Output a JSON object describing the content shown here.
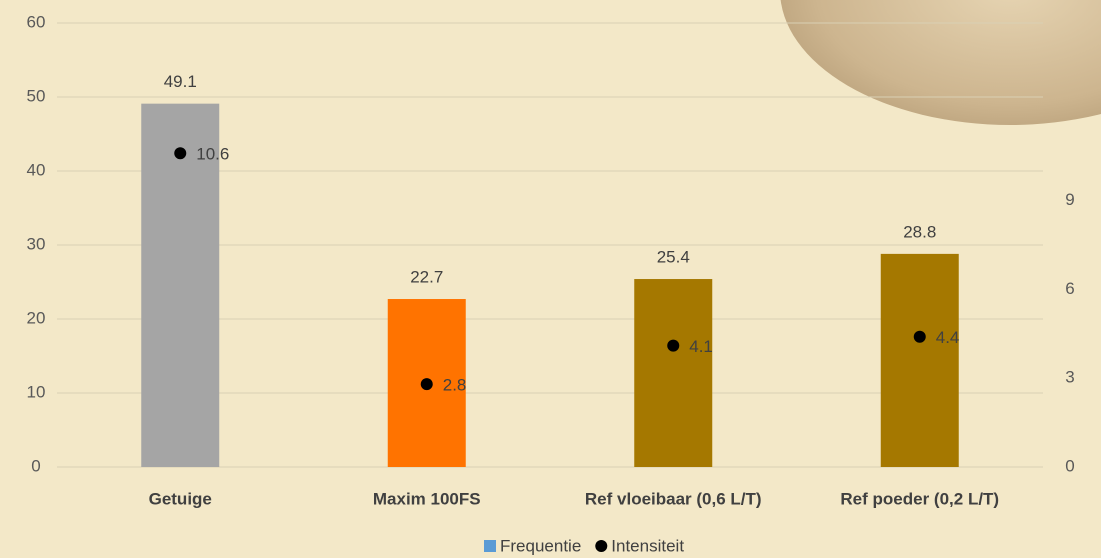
{
  "chart_data": {
    "type": "bar",
    "categories": [
      "Getuige",
      "Maxim 100FS",
      "Ref vloeibaar (0,6 L/T)",
      "Ref poeder  (0,2 L/T)"
    ],
    "series": [
      {
        "name": "Frequentie",
        "color": "#5b9bd5",
        "colors": [
          "#a5a5a5",
          "#ff7300",
          "#a57800",
          "#a57800"
        ],
        "values": [
          49.1,
          22.7,
          25.4,
          28.8
        ]
      },
      {
        "name": "Intensiteit",
        "color": "#000000",
        "axis": "y2",
        "values": [
          10.6,
          2.8,
          4.1,
          4.4
        ]
      }
    ],
    "ylim": [
      0,
      60
    ],
    "yticks": [
      0,
      10,
      20,
      30,
      40,
      50,
      60
    ],
    "y2lim": [
      0,
      15
    ],
    "y2ticks": [
      0,
      3,
      6,
      9
    ],
    "grid": true,
    "legend": "bottom"
  }
}
